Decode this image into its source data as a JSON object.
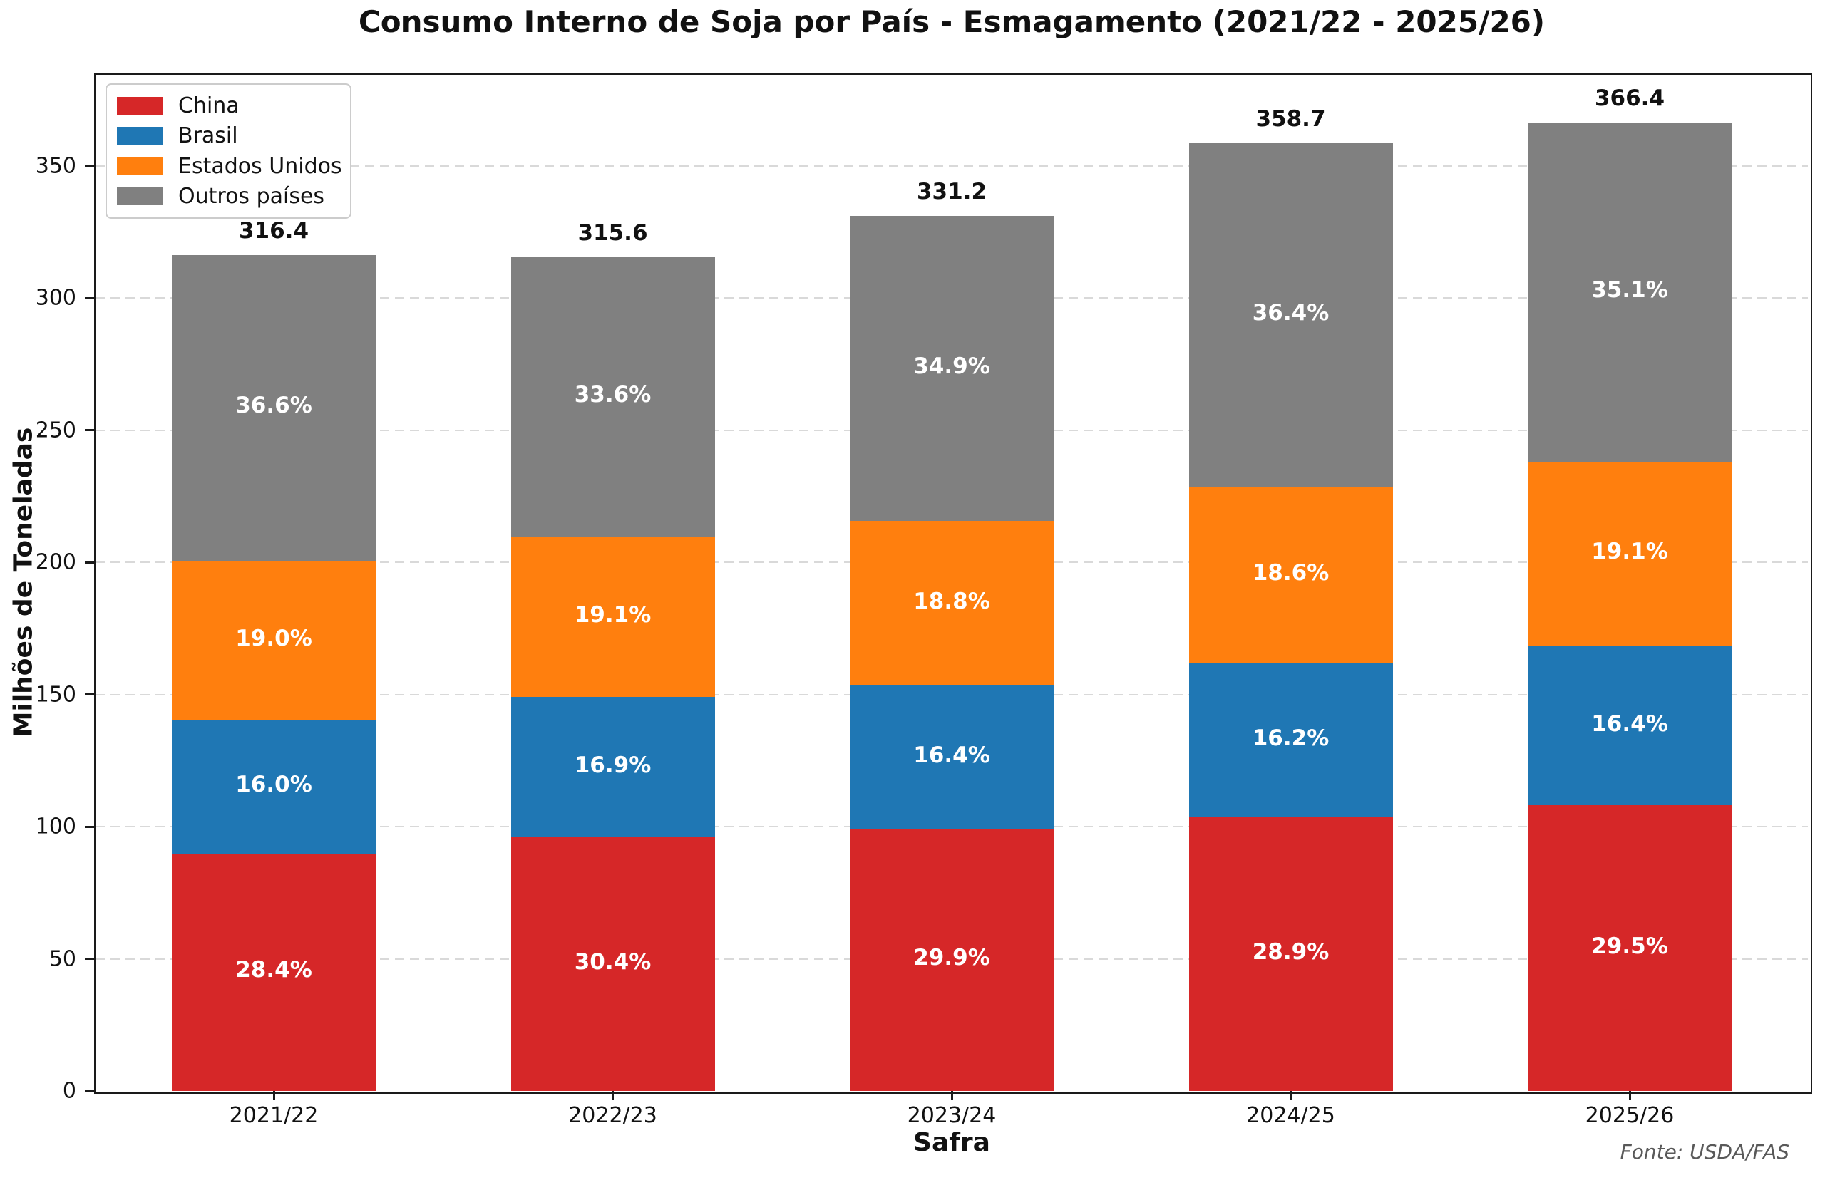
{
  "title": "Consumo Interno de Soja por País - Esmagamento (2021/22 - 2025/26)",
  "axes": {
    "xlabel": "Safra",
    "ylabel": "Milhões de Toneladas"
  },
  "source_note": "Fonte: USDA/FAS",
  "chart_data": {
    "type": "bar",
    "stacked": true,
    "title": "Consumo Interno de Soja por País - Esmagamento (2021/22 - 2025/26)",
    "xlabel": "Safra",
    "ylabel": "Milhões de Toneladas",
    "categories": [
      "2021/22",
      "2022/23",
      "2023/24",
      "2024/25",
      "2025/26"
    ],
    "totals": [
      316.4,
      315.6,
      331.2,
      358.7,
      366.4
    ],
    "series": [
      {
        "name": "China",
        "color": "#d62728",
        "values": [
          89.9,
          95.9,
          99.0,
          103.7,
          108.1
        ],
        "percent_labels": [
          "28.4%",
          "30.4%",
          "29.9%",
          "28.9%",
          "29.5%"
        ]
      },
      {
        "name": "Brasil",
        "color": "#1f77b4",
        "values": [
          50.6,
          53.3,
          54.3,
          58.1,
          60.1
        ],
        "percent_labels": [
          "16.0%",
          "16.9%",
          "16.4%",
          "16.2%",
          "16.4%"
        ]
      },
      {
        "name": "Estados Unidos",
        "color": "#ff7f0e",
        "values": [
          60.1,
          60.3,
          62.3,
          66.7,
          70.0
        ],
        "percent_labels": [
          "19.0%",
          "19.1%",
          "18.8%",
          "18.6%",
          "19.1%"
        ]
      },
      {
        "name": "Outros países",
        "color": "#808080",
        "values": [
          115.8,
          106.1,
          115.6,
          130.2,
          128.2
        ],
        "percent_labels": [
          "36.6%",
          "33.6%",
          "34.9%",
          "36.4%",
          "35.1%"
        ]
      }
    ],
    "ylim": [
      0,
      385
    ],
    "yticks": [
      0,
      50,
      100,
      150,
      200,
      250,
      300,
      350
    ],
    "grid": "horizontal-dashed",
    "grid_color": "#d9d9d9",
    "legend_position": "upper-left",
    "text_color_labels": "#ffffff",
    "text_color_totals": "#111111"
  }
}
